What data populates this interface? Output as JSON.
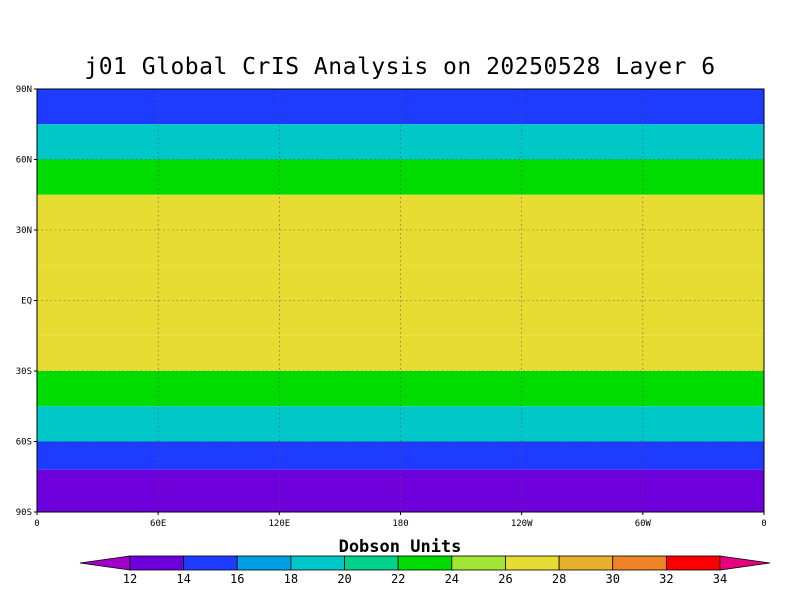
{
  "chart_data": {
    "type": "heatmap",
    "title": "j01 Global CrIS Analysis on 20250528 Layer 6",
    "colorbar_label": "Dobson Units",
    "y_ticks": [
      "90N",
      "60N",
      "30N",
      "EQ",
      "30S",
      "60S",
      "90S"
    ],
    "x_ticks": [
      "0",
      "60E",
      "120E",
      "180",
      "120W",
      "60W",
      "0"
    ],
    "x_range": [
      "0",
      "0"
    ],
    "y_range": [
      "90S",
      "90N"
    ],
    "grid": "dotted",
    "colorbar_levels": [
      12,
      14,
      16,
      18,
      20,
      22,
      24,
      26,
      28,
      30,
      32,
      34
    ],
    "colorbar_colors": [
      "#a000c8",
      "#6e00dc",
      "#1e3cff",
      "#00a0e6",
      "#00c8c8",
      "#00d28c",
      "#00dc00",
      "#a0e632",
      "#e6dc32",
      "#e6af2d",
      "#f08228",
      "#fa0000",
      "#e6007f"
    ],
    "field_summary": [
      {
        "lat_band": "90N-75N",
        "value": 15
      },
      {
        "lat_band": "75N-60N",
        "value": 18
      },
      {
        "lat_band": "60N-45N",
        "value": 23
      },
      {
        "lat_band": "45N-15N",
        "value": 26
      },
      {
        "lat_band": "15N-15S",
        "value": 27
      },
      {
        "lat_band": "15S-30S",
        "value": 26
      },
      {
        "lat_band": "30S-45S",
        "value": 23
      },
      {
        "lat_band": "45S-60S",
        "value": 18
      },
      {
        "lat_band": "60S-72S",
        "value": 14
      },
      {
        "lat_band": "72S-90S",
        "value": 12
      }
    ]
  }
}
